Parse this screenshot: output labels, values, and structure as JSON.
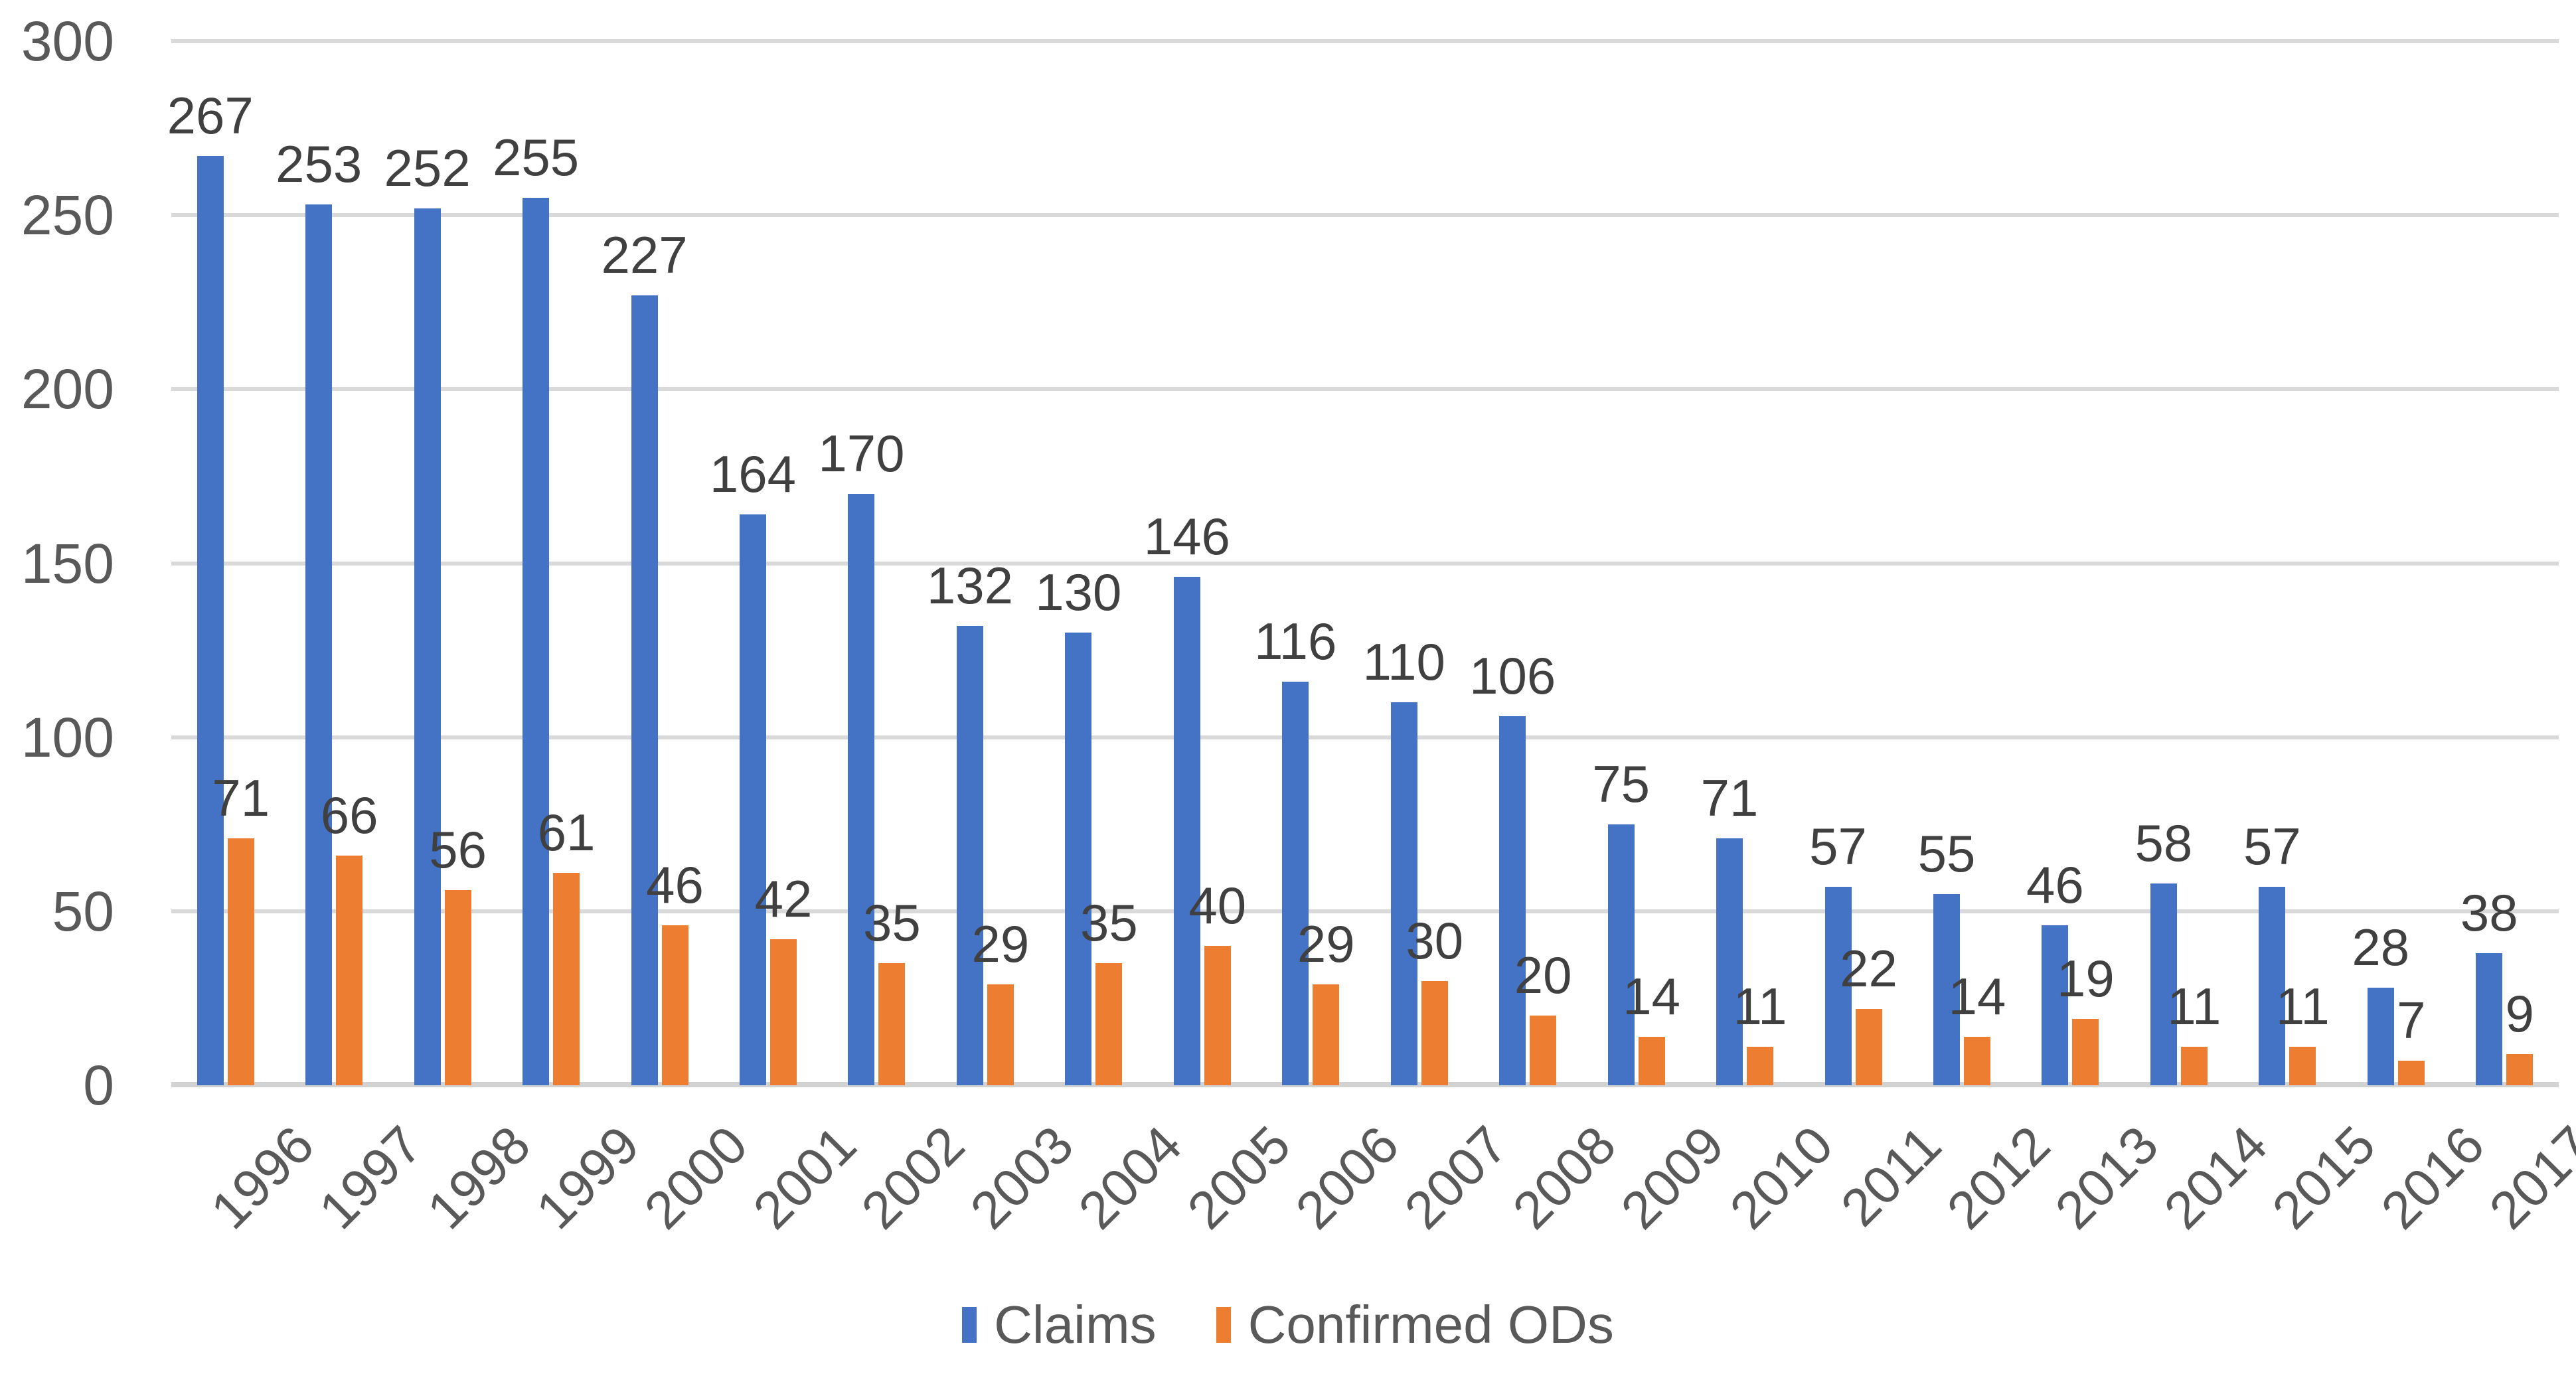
{
  "chart_data": {
    "type": "bar",
    "title": "",
    "xlabel": "",
    "ylabel": "",
    "categories": [
      "1996",
      "1997",
      "1998",
      "1999",
      "2000",
      "2001",
      "2002",
      "2003",
      "2004",
      "2005",
      "2006",
      "2007",
      "2008",
      "2009",
      "2010",
      "2011",
      "2012",
      "2013",
      "2014",
      "2015",
      "2016",
      "2017"
    ],
    "series": [
      {
        "name": "Claims",
        "color": "#4472C4",
        "values": [
          267,
          253,
          252,
          255,
          227,
          164,
          170,
          132,
          130,
          146,
          116,
          110,
          106,
          75,
          71,
          57,
          55,
          46,
          58,
          57,
          28,
          38
        ]
      },
      {
        "name": "Confirmed ODs",
        "color": "#ED7D31",
        "values": [
          71,
          66,
          56,
          61,
          46,
          42,
          35,
          29,
          35,
          40,
          29,
          30,
          20,
          14,
          11,
          22,
          14,
          19,
          11,
          11,
          7,
          9
        ]
      }
    ],
    "ylim": [
      0,
      300
    ],
    "yticks": [
      0,
      50,
      100,
      150,
      200,
      250,
      300
    ],
    "grid": true,
    "data_labels": true,
    "legend_position": "bottom"
  },
  "colors": {
    "claims": "#4472C4",
    "confirmed_ods": "#ED7D31",
    "gridline": "#D9D9D9",
    "axis_text": "#595959",
    "data_label_text": "#404040",
    "background": "#FFFFFF"
  }
}
